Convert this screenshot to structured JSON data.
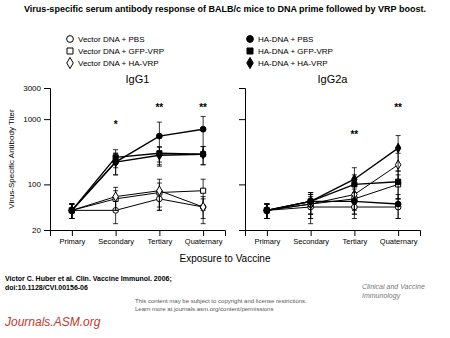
{
  "chart_data": {
    "type": "line",
    "title": "Virus-specific serum antibody response of BALB/c mice to DNA prime followed by VRP boost.",
    "xlabel": "Exposure to Vaccine",
    "ylabel": "Virus-Specific Antibody Titer",
    "categories": [
      "Primary",
      "Secondary",
      "Tertiary",
      "Quaternary"
    ],
    "log": "y",
    "grid": false,
    "ylim": [
      20,
      3000
    ],
    "yticks": [
      20,
      100,
      1000,
      3000
    ],
    "panels": [
      {
        "title": "IgG1",
        "series": [
          {
            "name": "Vector DNA + PBS",
            "marker": "circle-open",
            "color": "#000000",
            "values": [
              40,
              40,
              60,
              45
            ],
            "errors": [
              10,
              15,
              20,
              15
            ]
          },
          {
            "name": "Vector DNA + GFP-VRP",
            "marker": "square-open",
            "color": "#000000",
            "values": [
              40,
              60,
              75,
              80
            ],
            "errors": [
              10,
              20,
              30,
              40
            ]
          },
          {
            "name": "Vector DNA + HA-VRP",
            "marker": "diamond-open",
            "color": "#000000",
            "values": [
              40,
              65,
              80,
              45
            ],
            "errors": [
              10,
              25,
              40,
              20
            ]
          },
          {
            "name": "HA-DNA + PBS",
            "marker": "circle",
            "color": "#000000",
            "values": [
              40,
              220,
              550,
              700
            ],
            "errors": [
              10,
              80,
              350,
              400
            ]
          },
          {
            "name": "HA-DNA + GFP-VRP",
            "marker": "square",
            "color": "#000000",
            "values": [
              40,
              260,
              300,
              290
            ],
            "errors": [
              10,
              80,
              80,
              90
            ]
          },
          {
            "name": "HA-DNA + HA-VRP",
            "marker": "diamond",
            "color": "#000000",
            "values": [
              40,
              220,
              280,
              290
            ],
            "errors": [
              10,
              80,
              90,
              90
            ]
          }
        ],
        "annotations": [
          {
            "text": "*",
            "x": "Secondary",
            "y": 700
          },
          {
            "text": "**",
            "x": "Tertiary",
            "y": 1300
          },
          {
            "text": "**",
            "x": "Quaternary",
            "y": 1300
          }
        ]
      },
      {
        "title": "IgG2a",
        "tick_labels": "x",
        "series": [
          {
            "name": "Vector DNA + PBS",
            "marker": "circle-open",
            "color": "#000000",
            "values": [
              40,
              45,
              45,
              45
            ],
            "errors": [
              10,
              20,
              15,
              15
            ]
          },
          {
            "name": "Vector DNA + GFP-VRP",
            "marker": "square-open",
            "color": "#000000",
            "values": [
              40,
              50,
              60,
              100
            ],
            "errors": [
              10,
              20,
              25,
              40
            ]
          },
          {
            "name": "Vector DNA + HA-VRP",
            "marker": "diamond-open",
            "color": "#000000",
            "values": [
              40,
              50,
              70,
              200
            ],
            "errors": [
              10,
              20,
              30,
              100
            ]
          },
          {
            "name": "HA-DNA + PBS",
            "marker": "circle",
            "color": "#000000",
            "values": [
              40,
              55,
              55,
              50
            ],
            "errors": [
              10,
              20,
              20,
              20
            ]
          },
          {
            "name": "HA-DNA + GFP-VRP",
            "marker": "square",
            "color": "#000000",
            "values": [
              40,
              55,
              100,
              110
            ],
            "errors": [
              10,
              20,
              40,
              50
            ]
          },
          {
            "name": "HA-DNA + HA-VRP",
            "marker": "diamond",
            "color": "#000000",
            "values": [
              40,
              55,
              120,
              360
            ],
            "errors": [
              10,
              20,
              60,
              200
            ]
          }
        ],
        "annotations": [
          {
            "text": "**",
            "x": "Tertiary",
            "y": 500
          },
          {
            "text": "**",
            "x": "Quaternary",
            "y": 1300
          }
        ]
      }
    ],
    "annotations": [
      {
        "text": "Victor C. Huber et al. Clin. Vaccine Immunol. 2006;\ndoi:10.1128/CVI.00156-06"
      },
      {
        "text": "Journals.ASM.org",
        "color": "#c0392b"
      },
      {
        "text": "This content may be subject to copyright and license restrictions.\nLearn more at journals.asm.org/content/permissions",
        "color": "#555555"
      },
      {
        "text": "Clinical and Vaccine\nImmunology",
        "color": "#777777"
      }
    ]
  }
}
